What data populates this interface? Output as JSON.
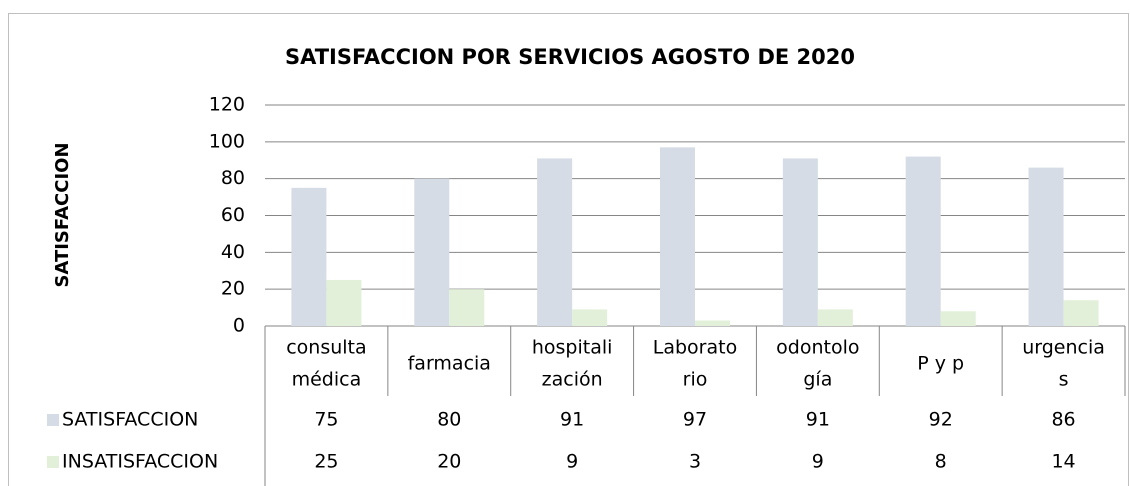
{
  "chart_data": {
    "type": "bar",
    "title": "SATISFACCION POR SERVICIOS AGOSTO DE 2020",
    "y_axis_label": "SATISFACCION",
    "categories": [
      [
        "consulta",
        "médica"
      ],
      [
        "farmacia"
      ],
      [
        "hospitali",
        "zación"
      ],
      [
        "Laborato",
        "rio"
      ],
      [
        "odontolo",
        "gía"
      ],
      [
        "P y p"
      ],
      [
        "urgencia",
        "s"
      ]
    ],
    "series": [
      {
        "name": "SATISFACCION",
        "color": "#d6dce5",
        "values": [
          75,
          80,
          91,
          97,
          91,
          92,
          86
        ]
      },
      {
        "name": "INSATISFACCION",
        "color": "#e2f0d9",
        "values": [
          25,
          20,
          9,
          3,
          9,
          8,
          14
        ]
      }
    ],
    "ylim": [
      0,
      120
    ],
    "yticks": [
      0,
      20,
      40,
      60,
      80,
      100,
      120
    ],
    "grid": true
  }
}
